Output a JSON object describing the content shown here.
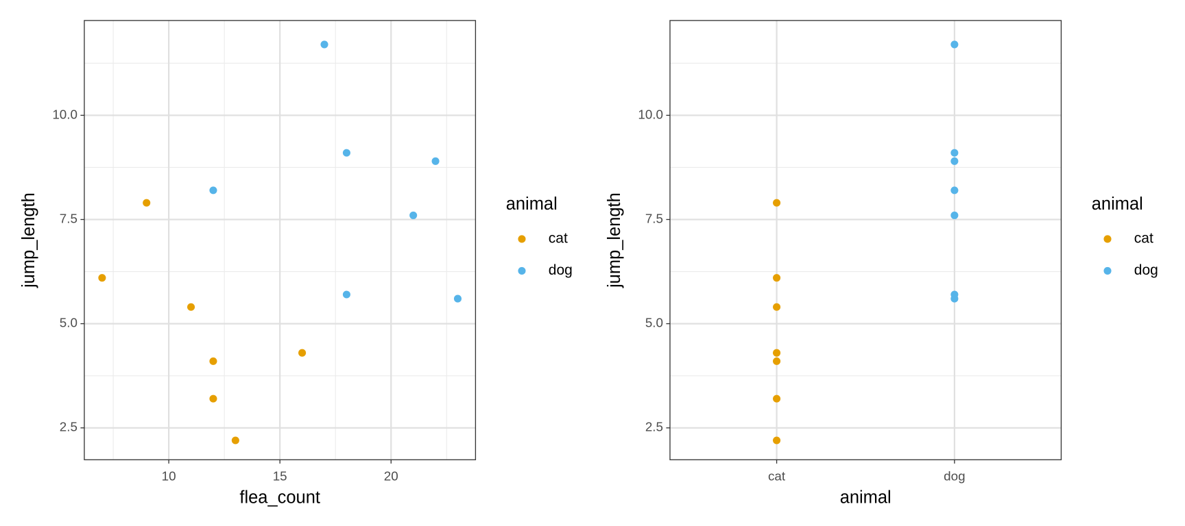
{
  "chart_data": [
    {
      "type": "scatter",
      "x_label": "flea_count",
      "y_label": "jump_length",
      "legend_title": "animal",
      "xlim": [
        6.2,
        23.8
      ],
      "ylim": [
        1.735,
        12.275
      ],
      "xticks": [
        10,
        15,
        20
      ],
      "yticks": [
        2.5,
        {
          "value": 5,
          "label": "5.0"
        },
        7.5,
        {
          "value": 10,
          "label": "10.0"
        }
      ],
      "x_minor_ticks": [
        7.5,
        12.5,
        17.5,
        22.5
      ],
      "y_minor_ticks": [
        3.75,
        6.25,
        8.75,
        11.25
      ],
      "grid": true,
      "series": [
        {
          "name": "cat",
          "color": "#E69F00",
          "x": [
            7,
            9,
            11,
            12,
            12,
            13,
            16
          ],
          "values": [
            6.1,
            7.9,
            5.4,
            4.1,
            3.2,
            2.2,
            4.3
          ]
        },
        {
          "name": "dog",
          "color": "#56B4E9",
          "x": [
            12,
            17,
            18,
            18,
            21,
            22,
            23
          ],
          "values": [
            8.2,
            11.7,
            9.1,
            5.7,
            7.6,
            8.9,
            5.6
          ]
        }
      ]
    },
    {
      "type": "strip",
      "x_label": "animal",
      "y_label": "jump_length",
      "legend_title": "animal",
      "categories": [
        "cat",
        "dog"
      ],
      "ylim": [
        1.735,
        12.275
      ],
      "yticks": [
        2.5,
        {
          "value": 5,
          "label": "5.0"
        },
        7.5,
        {
          "value": 10,
          "label": "10.0"
        }
      ],
      "y_minor_ticks": [
        3.75,
        6.25,
        8.75,
        11.25
      ],
      "grid": true,
      "series": [
        {
          "name": "cat",
          "color": "#E69F00",
          "values": [
            7.9,
            6.1,
            5.4,
            4.3,
            4.1,
            3.2,
            2.2
          ]
        },
        {
          "name": "dog",
          "color": "#56B4E9",
          "values": [
            11.7,
            9.1,
            8.9,
            8.2,
            7.6,
            5.7,
            5.6
          ]
        }
      ]
    }
  ]
}
